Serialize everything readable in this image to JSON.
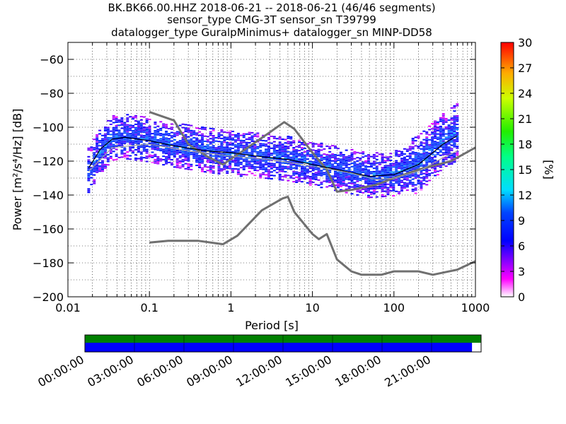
{
  "title": {
    "line1": "BK.BK66.00.HHZ   2018-06-21 -- 2018-06-21  (46/46 segments)",
    "line2": "sensor_type CMG-3T sensor_sn T39799",
    "line3": "datalogger_type GuralpMinimus+ datalogger_sn MINP-DD58"
  },
  "chart_data": {
    "type": "heatmap",
    "xlabel": "Period [s]",
    "ylabel": "Power [m²/s⁴/Hz] [dB]",
    "x_scale": "log",
    "xlim": [
      0.01,
      1000
    ],
    "ylim": [
      -200,
      -50
    ],
    "x_ticks": [
      0.01,
      0.1,
      1,
      10,
      100,
      1000
    ],
    "x_tick_labels": [
      "0.01",
      "0.1",
      "1",
      "10",
      "100",
      "1000"
    ],
    "y_ticks": [
      -200,
      -180,
      -160,
      -140,
      -120,
      -100,
      -80,
      -60
    ],
    "y_tick_labels": [
      "−200",
      "−180",
      "−160",
      "−140",
      "−120",
      "−100",
      "−80",
      "−60"
    ],
    "grid": true,
    "colorbar": {
      "label": "[%]",
      "range": [
        0,
        30
      ],
      "ticks": [
        "0",
        "3",
        "6",
        "9",
        "12",
        "15",
        "18",
        "21",
        "24",
        "27",
        "30"
      ],
      "colormap": "pqlx"
    },
    "series": [
      {
        "name": "",
        "style": "noise-model-high",
        "color": "#707070",
        "x": [
          0.1,
          0.2,
          0.3,
          0.5,
          0.8,
          1.5,
          3,
          4.5,
          6,
          10,
          15,
          20,
          30,
          60,
          100,
          200,
          500,
          1000
        ],
        "y": [
          -91,
          -96,
          -110,
          -117,
          -122,
          -113,
          -103,
          -97,
          -101,
          -115,
          -125,
          -138,
          -137,
          -134,
          -130,
          -125,
          -120,
          -112
        ]
      },
      {
        "name": "",
        "style": "noise-model-low",
        "color": "#707070",
        "x": [
          0.1,
          0.17,
          0.4,
          0.8,
          1.2,
          2.4,
          4.3,
          5,
          6,
          10,
          12,
          15,
          20,
          30,
          40,
          70,
          100,
          200,
          300,
          600,
          1000
        ],
        "y": [
          -168,
          -167,
          -167,
          -169,
          -164,
          -149,
          -142,
          -141,
          -150,
          -163,
          -166,
          -163,
          -178,
          -185,
          -187,
          -187,
          -185,
          -185,
          -187,
          -184,
          -179
        ]
      },
      {
        "name": "",
        "style": "mode",
        "color": "#000000",
        "x": [
          0.018,
          0.025,
          0.035,
          0.05,
          0.1,
          0.2,
          0.5,
          1,
          2,
          5,
          10,
          20,
          50,
          100,
          200,
          400,
          600
        ],
        "y": [
          -124,
          -113,
          -107,
          -106,
          -108,
          -111,
          -114,
          -115,
          -117,
          -119,
          -122,
          -125,
          -129,
          -128,
          -122,
          -110,
          -105
        ]
      },
      {
        "name": "",
        "style": "mean",
        "color": "#a0a0a0",
        "x": [
          0.018,
          0.035,
          0.1,
          0.3,
          1,
          3,
          10,
          30,
          60,
          100,
          200,
          400,
          600
        ],
        "y": [
          -126,
          -112,
          -110,
          -114,
          -117,
          -119,
          -123,
          -127,
          -131,
          -130,
          -126,
          -118,
          -114
        ]
      }
    ],
    "psd_cloud": {
      "period_min": 0.018,
      "period_max": 600,
      "median": [
        [
          0.018,
          -125
        ],
        [
          0.025,
          -114
        ],
        [
          0.035,
          -106
        ],
        [
          0.05,
          -105
        ],
        [
          0.1,
          -107
        ],
        [
          0.2,
          -110
        ],
        [
          0.5,
          -113
        ],
        [
          1,
          -115
        ],
        [
          2,
          -116
        ],
        [
          5,
          -118
        ],
        [
          10,
          -121
        ],
        [
          20,
          -124
        ],
        [
          50,
          -128
        ],
        [
          100,
          -127
        ],
        [
          200,
          -121
        ],
        [
          400,
          -108
        ],
        [
          600,
          -102
        ]
      ],
      "spread_db": 13
    },
    "time_coverage": {
      "time_tick_labels": [
        "00:00:00",
        "03:00:00",
        "06:00:00",
        "09:00:00",
        "12:00:00",
        "15:00:00",
        "18:00:00",
        "21:00:00"
      ],
      "data_bar_color": "#008000",
      "psd_bar_color": "#0000ff",
      "data_fraction": 1.0,
      "psd_fraction": 0.977
    }
  }
}
